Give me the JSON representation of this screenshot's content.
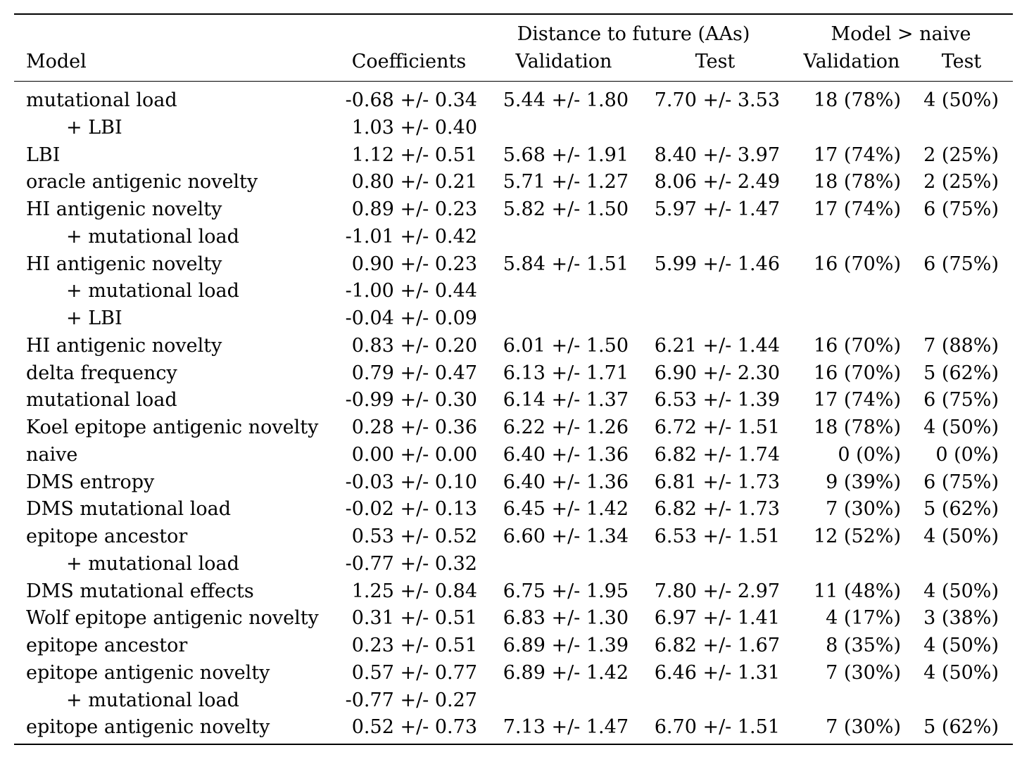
{
  "headers": {
    "group_distance": "Distance to future (AAs)",
    "group_model_vs_naive": "Model > naive",
    "model": "Model",
    "coefficients": "Coefficients",
    "dist_validation": "Validation",
    "dist_test": "Test",
    "mvn_validation": "Validation",
    "mvn_test": "Test"
  },
  "rows": [
    {
      "model": "mutational load",
      "indent": false,
      "coef": "-0.68 +/- 0.34",
      "dist_val": "5.44 +/- 1.80",
      "dist_test": "7.70 +/- 3.53",
      "mvn_val": "18 (78%)",
      "mvn_test": "4 (50%)"
    },
    {
      "model": "+ LBI",
      "indent": true,
      "coef": "1.03 +/- 0.40",
      "dist_val": "",
      "dist_test": "",
      "mvn_val": "",
      "mvn_test": ""
    },
    {
      "model": "LBI",
      "indent": false,
      "coef": "1.12 +/- 0.51",
      "dist_val": "5.68 +/- 1.91",
      "dist_test": "8.40 +/- 3.97",
      "mvn_val": "17 (74%)",
      "mvn_test": "2 (25%)"
    },
    {
      "model": "oracle antigenic novelty",
      "indent": false,
      "coef": "0.80 +/- 0.21",
      "dist_val": "5.71 +/- 1.27",
      "dist_test": "8.06 +/- 2.49",
      "mvn_val": "18 (78%)",
      "mvn_test": "2 (25%)"
    },
    {
      "model": "HI antigenic novelty",
      "indent": false,
      "coef": "0.89 +/- 0.23",
      "dist_val": "5.82 +/- 1.50",
      "dist_test": "5.97 +/- 1.47",
      "mvn_val": "17 (74%)",
      "mvn_test": "6 (75%)"
    },
    {
      "model": "+ mutational load",
      "indent": true,
      "coef": "-1.01 +/- 0.42",
      "dist_val": "",
      "dist_test": "",
      "mvn_val": "",
      "mvn_test": ""
    },
    {
      "model": "HI antigenic novelty",
      "indent": false,
      "coef": "0.90 +/- 0.23",
      "dist_val": "5.84 +/- 1.51",
      "dist_test": "5.99 +/- 1.46",
      "mvn_val": "16 (70%)",
      "mvn_test": "6 (75%)"
    },
    {
      "model": "+ mutational load",
      "indent": true,
      "coef": "-1.00 +/- 0.44",
      "dist_val": "",
      "dist_test": "",
      "mvn_val": "",
      "mvn_test": ""
    },
    {
      "model": "+ LBI",
      "indent": true,
      "coef": "-0.04 +/- 0.09",
      "dist_val": "",
      "dist_test": "",
      "mvn_val": "",
      "mvn_test": ""
    },
    {
      "model": "HI antigenic novelty",
      "indent": false,
      "coef": "0.83 +/- 0.20",
      "dist_val": "6.01 +/- 1.50",
      "dist_test": "6.21 +/- 1.44",
      "mvn_val": "16 (70%)",
      "mvn_test": "7 (88%)"
    },
    {
      "model": "delta frequency",
      "indent": false,
      "coef": "0.79 +/- 0.47",
      "dist_val": "6.13 +/- 1.71",
      "dist_test": "6.90 +/- 2.30",
      "mvn_val": "16 (70%)",
      "mvn_test": "5 (62%)"
    },
    {
      "model": "mutational load",
      "indent": false,
      "coef": "-0.99 +/- 0.30",
      "dist_val": "6.14 +/- 1.37",
      "dist_test": "6.53 +/- 1.39",
      "mvn_val": "17 (74%)",
      "mvn_test": "6 (75%)"
    },
    {
      "model": "Koel epitope antigenic novelty",
      "indent": false,
      "coef": "0.28 +/- 0.36",
      "dist_val": "6.22 +/- 1.26",
      "dist_test": "6.72 +/- 1.51",
      "mvn_val": "18 (78%)",
      "mvn_test": "4 (50%)"
    },
    {
      "model": "naive",
      "indent": false,
      "coef": "0.00 +/- 0.00",
      "dist_val": "6.40 +/- 1.36",
      "dist_test": "6.82 +/- 1.74",
      "mvn_val": "0 (0%)",
      "mvn_test": "0 (0%)"
    },
    {
      "model": "DMS entropy",
      "indent": false,
      "coef": "-0.03 +/- 0.10",
      "dist_val": "6.40 +/- 1.36",
      "dist_test": "6.81 +/- 1.73",
      "mvn_val": "9 (39%)",
      "mvn_test": "6 (75%)"
    },
    {
      "model": "DMS mutational load",
      "indent": false,
      "coef": "-0.02 +/- 0.13",
      "dist_val": "6.45 +/- 1.42",
      "dist_test": "6.82 +/- 1.73",
      "mvn_val": "7 (30%)",
      "mvn_test": "5 (62%)"
    },
    {
      "model": "epitope ancestor",
      "indent": false,
      "coef": "0.53 +/- 0.52",
      "dist_val": "6.60 +/- 1.34",
      "dist_test": "6.53 +/- 1.51",
      "mvn_val": "12 (52%)",
      "mvn_test": "4 (50%)"
    },
    {
      "model": "+ mutational load",
      "indent": true,
      "coef": "-0.77 +/- 0.32",
      "dist_val": "",
      "dist_test": "",
      "mvn_val": "",
      "mvn_test": ""
    },
    {
      "model": "DMS mutational effects",
      "indent": false,
      "coef": "1.25 +/- 0.84",
      "dist_val": "6.75 +/- 1.95",
      "dist_test": "7.80 +/- 2.97",
      "mvn_val": "11 (48%)",
      "mvn_test": "4 (50%)"
    },
    {
      "model": "Wolf epitope antigenic novelty",
      "indent": false,
      "coef": "0.31 +/- 0.51",
      "dist_val": "6.83 +/- 1.30",
      "dist_test": "6.97 +/- 1.41",
      "mvn_val": "4 (17%)",
      "mvn_test": "3 (38%)"
    },
    {
      "model": "epitope ancestor",
      "indent": false,
      "coef": "0.23 +/- 0.51",
      "dist_val": "6.89 +/- 1.39",
      "dist_test": "6.82 +/- 1.67",
      "mvn_val": "8 (35%)",
      "mvn_test": "4 (50%)"
    },
    {
      "model": "epitope antigenic novelty",
      "indent": false,
      "coef": "0.57 +/- 0.77",
      "dist_val": "6.89 +/- 1.42",
      "dist_test": "6.46 +/- 1.31",
      "mvn_val": "7 (30%)",
      "mvn_test": "4 (50%)"
    },
    {
      "model": "+ mutational load",
      "indent": true,
      "coef": "-0.77 +/- 0.27",
      "dist_val": "",
      "dist_test": "",
      "mvn_val": "",
      "mvn_test": ""
    },
    {
      "model": "epitope antigenic novelty",
      "indent": false,
      "coef": "0.52 +/- 0.73",
      "dist_val": "7.13 +/- 1.47",
      "dist_test": "6.70 +/- 1.51",
      "mvn_val": "7 (30%)",
      "mvn_test": "5 (62%)"
    }
  ]
}
